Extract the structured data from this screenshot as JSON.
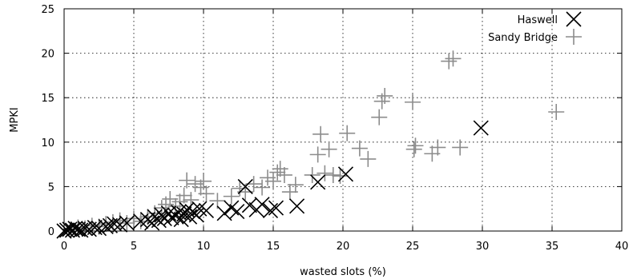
{
  "chart_data": {
    "type": "scatter",
    "title": "",
    "xlabel": "wasted slots (%)",
    "ylabel": "MPKI",
    "xlim": [
      0,
      40
    ],
    "ylim": [
      0,
      25
    ],
    "xticks": [
      0,
      5,
      10,
      15,
      20,
      25,
      30,
      35,
      40
    ],
    "yticks": [
      0,
      5,
      10,
      15,
      20,
      25
    ],
    "grid": true,
    "legend_position": "top-right",
    "series": [
      {
        "name": "Haswell",
        "marker": "x",
        "color": "#000000",
        "points": [
          [
            0.0,
            0.0
          ],
          [
            0.2,
            0.1
          ],
          [
            0.4,
            0.2
          ],
          [
            0.6,
            0.1
          ],
          [
            0.8,
            0.3
          ],
          [
            1.0,
            0.2
          ],
          [
            1.2,
            0.1
          ],
          [
            1.5,
            0.3
          ],
          [
            1.8,
            0.2
          ],
          [
            2.2,
            0.4
          ],
          [
            2.5,
            0.3
          ],
          [
            3.0,
            0.5
          ],
          [
            3.3,
            0.6
          ],
          [
            3.6,
            0.8
          ],
          [
            4.0,
            0.7
          ],
          [
            4.5,
            0.9
          ],
          [
            5.5,
            1.1
          ],
          [
            6.0,
            1.3
          ],
          [
            6.3,
            0.9
          ],
          [
            6.5,
            1.6
          ],
          [
            6.8,
            1.2
          ],
          [
            7.0,
            1.8
          ],
          [
            7.2,
            1.4
          ],
          [
            7.5,
            2.0
          ],
          [
            7.7,
            1.5
          ],
          [
            8.0,
            1.7
          ],
          [
            8.2,
            2.1
          ],
          [
            8.4,
            1.3
          ],
          [
            8.6,
            1.9
          ],
          [
            8.8,
            2.4
          ],
          [
            9.0,
            1.6
          ],
          [
            9.2,
            2.2
          ],
          [
            9.5,
            1.8
          ],
          [
            9.7,
            2.5
          ],
          [
            10.2,
            2.3
          ],
          [
            11.5,
            2.0
          ],
          [
            12.0,
            2.6
          ],
          [
            12.4,
            2.2
          ],
          [
            13.0,
            5.0
          ],
          [
            13.3,
            2.9
          ],
          [
            13.8,
            2.4
          ],
          [
            14.2,
            3.0
          ],
          [
            14.8,
            2.3
          ],
          [
            15.2,
            2.6
          ],
          [
            16.7,
            2.8
          ],
          [
            18.2,
            5.5
          ],
          [
            20.2,
            6.4
          ],
          [
            29.9,
            11.6
          ]
        ]
      },
      {
        "name": "Sandy Bridge",
        "marker": "+",
        "color": "#8c8c8c",
        "points": [
          [
            0.5,
            0.2
          ],
          [
            1.0,
            0.4
          ],
          [
            1.5,
            0.3
          ],
          [
            2.0,
            0.6
          ],
          [
            2.5,
            0.5
          ],
          [
            3.0,
            0.8
          ],
          [
            3.5,
            1.0
          ],
          [
            4.0,
            1.2
          ],
          [
            4.5,
            0.9
          ],
          [
            5.0,
            1.4
          ],
          [
            5.5,
            1.1
          ],
          [
            6.0,
            1.6
          ],
          [
            6.5,
            2.0
          ],
          [
            7.0,
            2.6
          ],
          [
            7.3,
            3.0
          ],
          [
            7.6,
            3.6
          ],
          [
            8.0,
            2.8
          ],
          [
            8.3,
            3.3
          ],
          [
            8.6,
            4.0
          ],
          [
            8.8,
            5.7
          ],
          [
            9.1,
            3.5
          ],
          [
            9.4,
            5.3
          ],
          [
            9.8,
            4.9
          ],
          [
            10.0,
            5.6
          ],
          [
            10.2,
            4.2
          ],
          [
            11.0,
            3.4
          ],
          [
            12.0,
            3.9
          ],
          [
            12.6,
            4.8
          ],
          [
            13.0,
            4.4
          ],
          [
            13.6,
            5.3
          ],
          [
            14.2,
            4.9
          ],
          [
            14.6,
            6.0
          ],
          [
            15.0,
            5.6
          ],
          [
            15.3,
            6.6
          ],
          [
            15.5,
            7.0
          ],
          [
            15.8,
            6.3
          ],
          [
            16.2,
            4.4
          ],
          [
            16.6,
            5.2
          ],
          [
            17.8,
            6.3
          ],
          [
            18.2,
            8.6
          ],
          [
            18.4,
            10.9
          ],
          [
            18.7,
            6.5
          ],
          [
            19.0,
            9.2
          ],
          [
            19.3,
            6.3
          ],
          [
            19.8,
            6.2
          ],
          [
            20.3,
            11.0
          ],
          [
            21.2,
            9.3
          ],
          [
            21.8,
            8.1
          ],
          [
            22.6,
            12.8
          ],
          [
            22.8,
            14.6
          ],
          [
            23.0,
            15.2
          ],
          [
            25.0,
            14.5
          ],
          [
            25.1,
            9.2
          ],
          [
            25.2,
            9.6
          ],
          [
            26.4,
            8.7
          ],
          [
            26.8,
            9.4
          ],
          [
            28.4,
            9.4
          ],
          [
            27.6,
            19.1
          ],
          [
            27.9,
            19.4
          ],
          [
            35.3,
            13.4
          ]
        ]
      }
    ]
  }
}
